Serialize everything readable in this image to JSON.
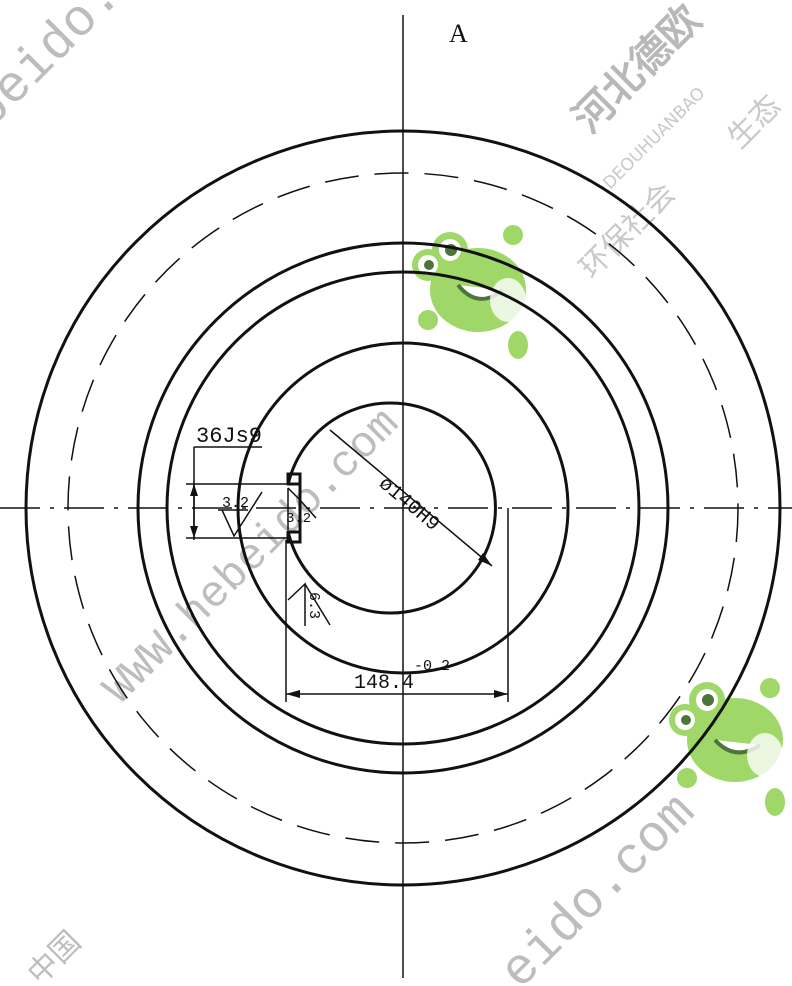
{
  "view_label": "A",
  "dimensions": {
    "keyway_width": "36Js9",
    "bore_diameter": "ø140H9",
    "keyway_depth": "148.4",
    "keyway_depth_tolerance": "-0.2"
  },
  "roughness": {
    "keyway_side": "3.2",
    "keyway_bottom": "3.2",
    "bore": "6.3"
  },
  "watermarks": {
    "url_top_left": "beido.",
    "url_center": "WWW.hebeido.com",
    "url_bottom_left": "中国",
    "url_bottom_right": "eido.com",
    "url_right": "com",
    "company_cn": "河北德欧",
    "company_en": "DEOUHUANBAO",
    "slogan_1": "环保社会",
    "slogan_2": "生态"
  },
  "colors": {
    "line": "#111111",
    "watermark": "#c9c9c9",
    "mascot": "#8fd14f"
  }
}
